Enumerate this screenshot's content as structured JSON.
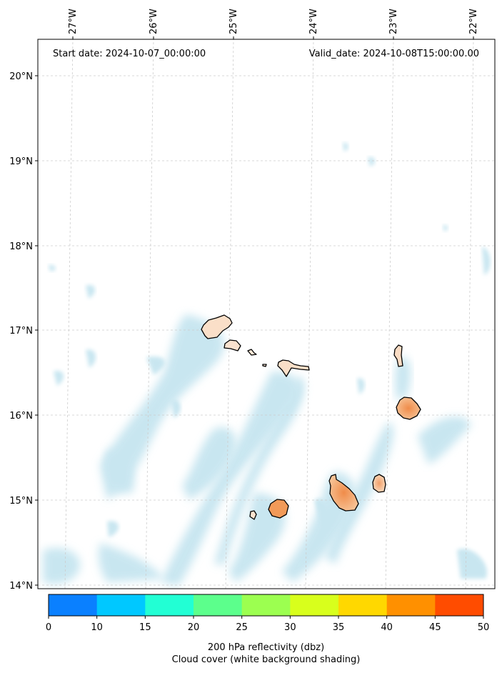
{
  "map": {
    "start_date": "Start date: 2024-10-07_00:00:00",
    "valid_date": "Valid_date: 2024-10-08T15:00:00.00",
    "lon_labels": [
      "27°W",
      "26°W",
      "25°W",
      "24°W",
      "23°W",
      "22°W"
    ],
    "lat_labels": [
      "20°N",
      "19°N",
      "18°N",
      "17°N",
      "16°N",
      "15°N",
      "14°N"
    ]
  },
  "colorbar": {
    "ticks": [
      "0",
      "10",
      "15",
      "20",
      "25",
      "30",
      "35",
      "40",
      "45",
      "50"
    ],
    "colors": [
      "#0a80ff",
      "#00c8ff",
      "#22ffd4",
      "#5cff8c",
      "#9cff50",
      "#d8ff1c",
      "#ffd800",
      "#ff9000",
      "#ff4c00"
    ],
    "label_line1": "200 hPa reflectivity (dbz)",
    "label_line2": "Cloud cover (white background shading)"
  }
}
